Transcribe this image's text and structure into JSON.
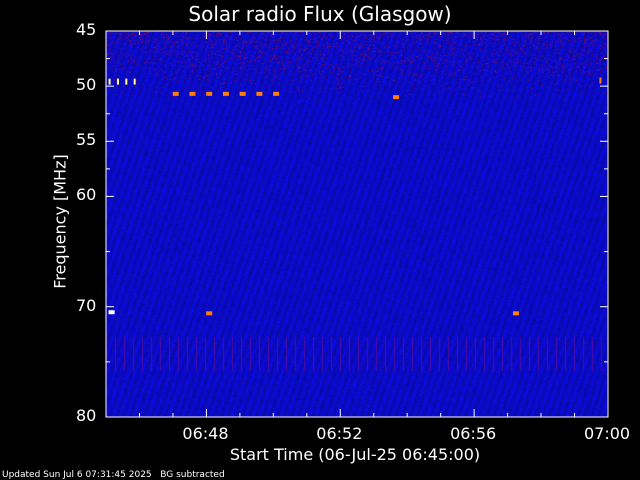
{
  "chart_data": {
    "type": "heatmap",
    "title": "Solar radio Flux (Glasgow)",
    "xlabel": "Start Time (06-Jul-25 06:45:00)",
    "ylabel": "Frequency [MHz]",
    "x_tick_labels": [
      "06:48",
      "06:52",
      "06:56",
      "07:00"
    ],
    "x_ticks_minutes": [
      3,
      7,
      11,
      15
    ],
    "xlim_minutes": [
      0,
      15
    ],
    "y_tick_labels": [
      "45",
      "50",
      "55",
      "60",
      "70",
      "80"
    ],
    "y_ticks": [
      45,
      50,
      55,
      60,
      70,
      80
    ],
    "ylim": [
      45,
      80
    ],
    "y_inverted": true,
    "colors": {
      "background": "#1010c8",
      "low": "#0000a0",
      "high": "#ff3000",
      "peak": "#ffff80"
    },
    "features": [
      {
        "time": "06:45:10",
        "freq": 49.5
      },
      {
        "time": "06:45:25",
        "freq": 49.5
      },
      {
        "time": "06:45:40",
        "freq": 49.5
      },
      {
        "time": "06:45:55",
        "freq": 49.5
      },
      {
        "time": "06:47:05",
        "freq": 50.7
      },
      {
        "time": "06:47:35",
        "freq": 50.7
      },
      {
        "time": "06:48:05",
        "freq": 50.7
      },
      {
        "time": "06:48:35",
        "freq": 50.7
      },
      {
        "time": "06:49:05",
        "freq": 50.7
      },
      {
        "time": "06:49:35",
        "freq": 50.7
      },
      {
        "time": "06:50:05",
        "freq": 50.7
      },
      {
        "time": "06:53:40",
        "freq": 51.0
      },
      {
        "time": "06:45:10",
        "freq": 70.5
      },
      {
        "time": "06:48:05",
        "freq": 70.6
      },
      {
        "time": "06:57:15",
        "freq": 70.6
      },
      {
        "time": "06:59:50",
        "freq": 49.4
      }
    ]
  },
  "footer": {
    "updated": "Updated Sun Jul  6 07:31:45 2025",
    "note": "BG subtracted"
  }
}
